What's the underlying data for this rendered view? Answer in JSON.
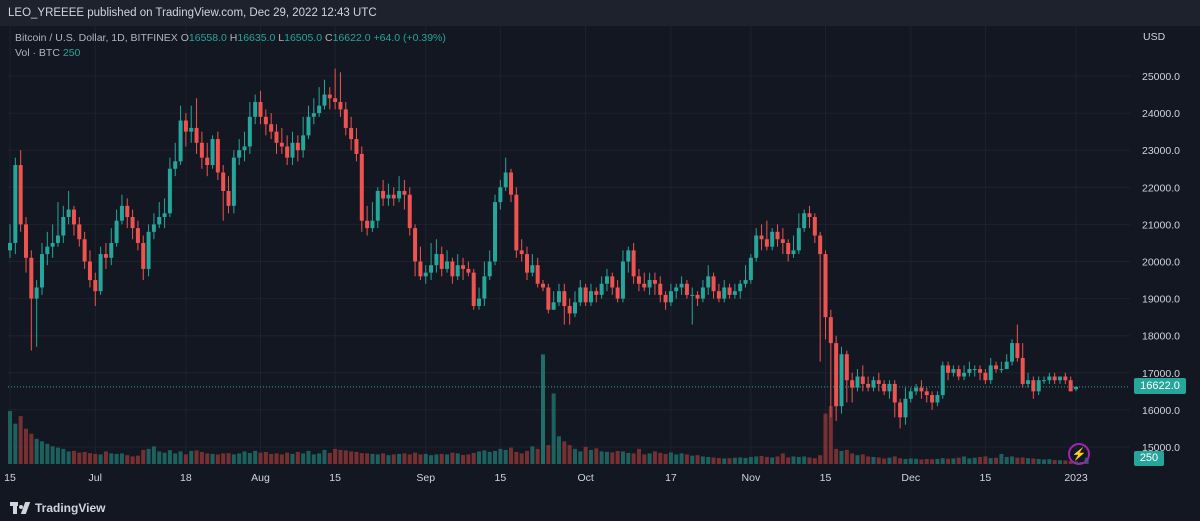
{
  "header": {
    "published": "LEO_YREEEE published on TradingView.com, Dec 29, 2022 12:43 UTC"
  },
  "legend": {
    "symbol": "Bitcoin / U.S. Dollar, 1D, BITFINEX",
    "open_label": "O",
    "open": "16558.0",
    "high_label": "H",
    "high": "16635.0",
    "low_label": "L",
    "low": "16505.0",
    "close_label": "C",
    "close": "16622.0",
    "change": "+64.0 (+0.39%)",
    "volume_label": "Vol · BTC",
    "volume": "250"
  },
  "axis": {
    "currency": "USD",
    "last_price": "16622.0",
    "last_volume": "250"
  },
  "footer": {
    "brand": "TradingView"
  },
  "colors": {
    "background": "#131722",
    "up": "#26a69a",
    "down": "#ef5350",
    "grid": "#1e222d",
    "text": "#d1d4dc"
  },
  "icons": {
    "alert": "lightning-icon"
  },
  "chart_data": {
    "type": "candlestick",
    "interval": "1D",
    "ylim": [
      14700,
      25400
    ],
    "y_ticks": [
      15000,
      16000,
      17000,
      18000,
      19000,
      20000,
      21000,
      22000,
      23000,
      24000,
      25000
    ],
    "y_tick_labels": [
      "15000.0",
      "16000.0",
      "17000.0",
      "18000.0",
      "19000.0",
      "20000.0",
      "21000.0",
      "22000.0",
      "23000.0",
      "24000.0",
      "25000.0"
    ],
    "x_ticks": [
      {
        "label": "15",
        "index": 0
      },
      {
        "label": "Jul",
        "index": 16
      },
      {
        "label": "18",
        "index": 33
      },
      {
        "label": "Aug",
        "index": 47
      },
      {
        "label": "15",
        "index": 61
      },
      {
        "label": "Sep",
        "index": 78
      },
      {
        "label": "15",
        "index": 92
      },
      {
        "label": "Oct",
        "index": 108
      },
      {
        "label": "17",
        "index": 124
      },
      {
        "label": "Nov",
        "index": 139
      },
      {
        "label": "15",
        "index": 153
      },
      {
        "label": "Dec",
        "index": 169
      },
      {
        "label": "15",
        "index": 183
      },
      {
        "label": "2023",
        "index": 200
      }
    ],
    "last_price": 16622.0,
    "points": [
      [
        20300,
        20500,
        21000,
        20100
      ],
      [
        20500,
        22600,
        22800,
        20200
      ],
      [
        22600,
        21000,
        23000,
        20800
      ],
      [
        21000,
        20100,
        21200,
        19700
      ],
      [
        20100,
        19000,
        20300,
        17600
      ],
      [
        19000,
        19300,
        19500,
        17700
      ],
      [
        19300,
        20200,
        20500,
        19100
      ],
      [
        20200,
        20400,
        20800,
        19900
      ],
      [
        20400,
        20500,
        21000,
        20100
      ],
      [
        20500,
        20700,
        21600,
        20400
      ],
      [
        20700,
        21200,
        21500,
        20500
      ],
      [
        21200,
        21400,
        21900,
        21000
      ],
      [
        21400,
        21000,
        21500,
        20700
      ],
      [
        21000,
        20600,
        21200,
        20400
      ],
      [
        20600,
        20000,
        20800,
        19800
      ],
      [
        20000,
        19500,
        20300,
        19300
      ],
      [
        19500,
        19200,
        19700,
        18800
      ],
      [
        19200,
        20200,
        20400,
        19100
      ],
      [
        20200,
        20100,
        20500,
        19800
      ],
      [
        20100,
        20500,
        20900,
        19900
      ],
      [
        20500,
        21100,
        21400,
        20400
      ],
      [
        21100,
        21500,
        21800,
        21000
      ],
      [
        21500,
        21200,
        21700,
        20900
      ],
      [
        21200,
        20900,
        21400,
        20600
      ],
      [
        20900,
        20500,
        21100,
        20300
      ],
      [
        20500,
        19800,
        20700,
        19500
      ],
      [
        19800,
        20800,
        21000,
        19600
      ],
      [
        20800,
        21000,
        21300,
        20600
      ],
      [
        21000,
        21200,
        21600,
        20900
      ],
      [
        21200,
        21300,
        21700,
        20900
      ],
      [
        21300,
        22500,
        22800,
        21200
      ],
      [
        22500,
        22700,
        23200,
        22300
      ],
      [
        22700,
        23800,
        24200,
        22600
      ],
      [
        23800,
        23500,
        24000,
        23100
      ],
      [
        23500,
        23600,
        24200,
        23200
      ],
      [
        23600,
        23200,
        24400,
        22900
      ],
      [
        23200,
        22800,
        23500,
        22500
      ],
      [
        22800,
        22600,
        23200,
        22300
      ],
      [
        22600,
        23300,
        23400,
        22500
      ],
      [
        23300,
        22400,
        23500,
        22200
      ],
      [
        22400,
        21900,
        22600,
        21100
      ],
      [
        21900,
        21500,
        22300,
        21300
      ],
      [
        21500,
        22800,
        23000,
        21300
      ],
      [
        22800,
        23000,
        23300,
        22600
      ],
      [
        23000,
        23100,
        23500,
        22700
      ],
      [
        23100,
        23900,
        24300,
        22900
      ],
      [
        23900,
        24300,
        24500,
        23700
      ],
      [
        24300,
        23900,
        24600,
        23700
      ],
      [
        23900,
        23700,
        24100,
        23400
      ],
      [
        23700,
        23500,
        24000,
        23300
      ],
      [
        23500,
        23200,
        23700,
        22900
      ],
      [
        23200,
        23100,
        23600,
        22900
      ],
      [
        23100,
        22800,
        23400,
        22600
      ],
      [
        22800,
        23200,
        23500,
        22600
      ],
      [
        23200,
        23000,
        23400,
        22700
      ],
      [
        23000,
        23400,
        23900,
        22800
      ],
      [
        23400,
        23900,
        24200,
        23300
      ],
      [
        23900,
        24000,
        24400,
        23700
      ],
      [
        24000,
        24200,
        24700,
        23900
      ],
      [
        24200,
        24500,
        24900,
        24100
      ],
      [
        24500,
        24400,
        24700,
        24100
      ],
      [
        24400,
        24300,
        25200,
        24100
      ],
      [
        24300,
        24100,
        25100,
        23900
      ],
      [
        24100,
        23600,
        24300,
        23400
      ],
      [
        23600,
        23300,
        23900,
        23000
      ],
      [
        23300,
        22900,
        23600,
        22700
      ],
      [
        22900,
        21100,
        23100,
        20800
      ],
      [
        21100,
        20900,
        21500,
        20700
      ],
      [
        20900,
        21100,
        21600,
        20800
      ],
      [
        21100,
        21900,
        22000,
        20900
      ],
      [
        21900,
        21700,
        22200,
        21500
      ],
      [
        21700,
        21800,
        22100,
        21500
      ],
      [
        21800,
        21700,
        22000,
        21500
      ],
      [
        21700,
        21900,
        22300,
        21600
      ],
      [
        21900,
        21800,
        22200,
        21400
      ],
      [
        21800,
        20900,
        22000,
        20700
      ],
      [
        20900,
        20000,
        21000,
        19600
      ],
      [
        20000,
        19600,
        20400,
        19500
      ],
      [
        19600,
        19700,
        19900,
        19400
      ],
      [
        19700,
        19900,
        20500,
        19500
      ],
      [
        19900,
        20200,
        20600,
        19700
      ],
      [
        20200,
        19800,
        20400,
        19600
      ],
      [
        19800,
        20000,
        20300,
        19700
      ],
      [
        20000,
        19600,
        20100,
        19400
      ],
      [
        19600,
        19900,
        20200,
        19500
      ],
      [
        19900,
        19800,
        20100,
        19500
      ],
      [
        19800,
        19700,
        20000,
        19600
      ],
      [
        19700,
        18800,
        19800,
        18700
      ],
      [
        18800,
        19000,
        19300,
        18700
      ],
      [
        19000,
        19600,
        20000,
        18800
      ],
      [
        19600,
        20000,
        20300,
        19500
      ],
      [
        20000,
        21600,
        21800,
        19900
      ],
      [
        21600,
        22000,
        22200,
        21400
      ],
      [
        22000,
        22400,
        22800,
        21900
      ],
      [
        22400,
        21800,
        22500,
        21600
      ],
      [
        21800,
        20300,
        22000,
        20100
      ],
      [
        20300,
        20200,
        20600,
        20000
      ],
      [
        20200,
        19700,
        20400,
        19500
      ],
      [
        19700,
        19900,
        20200,
        19600
      ],
      [
        19900,
        19400,
        20100,
        19300
      ],
      [
        19400,
        19300,
        19500,
        19200
      ],
      [
        19300,
        18700,
        19400,
        18600
      ],
      [
        18700,
        18900,
        19200,
        18700
      ],
      [
        18900,
        19200,
        19400,
        18800
      ],
      [
        19200,
        18800,
        19400,
        18300
      ],
      [
        18800,
        18600,
        19000,
        18300
      ],
      [
        18600,
        18900,
        19200,
        18500
      ],
      [
        18900,
        19300,
        19500,
        18800
      ],
      [
        19300,
        18900,
        19400,
        18800
      ],
      [
        18900,
        19200,
        19400,
        18800
      ],
      [
        19200,
        19100,
        19300,
        18900
      ],
      [
        19100,
        19400,
        19600,
        19000
      ],
      [
        19400,
        19600,
        19800,
        19200
      ],
      [
        19600,
        19300,
        19700,
        19100
      ],
      [
        19300,
        19000,
        19500,
        18900
      ],
      [
        19000,
        20000,
        20300,
        18900
      ],
      [
        20000,
        20300,
        20400,
        19700
      ],
      [
        20300,
        19600,
        20500,
        19400
      ],
      [
        19600,
        19400,
        19800,
        19200
      ],
      [
        19400,
        19300,
        19700,
        19200
      ],
      [
        19300,
        19500,
        19700,
        19100
      ],
      [
        19500,
        19400,
        19700,
        19100
      ],
      [
        19400,
        19100,
        19600,
        18900
      ],
      [
        19100,
        18900,
        19200,
        18700
      ],
      [
        18900,
        19200,
        19400,
        18800
      ],
      [
        19200,
        19300,
        19400,
        19000
      ],
      [
        19300,
        19400,
        19600,
        19100
      ],
      [
        19400,
        19100,
        19500,
        19000
      ],
      [
        19100,
        19100,
        19300,
        18300
      ],
      [
        19100,
        19000,
        19200,
        18800
      ],
      [
        19000,
        19300,
        19500,
        18900
      ],
      [
        19300,
        19600,
        19900,
        19100
      ],
      [
        19600,
        19200,
        19700,
        19000
      ],
      [
        19200,
        19000,
        19400,
        18900
      ],
      [
        19000,
        19300,
        19500,
        18900
      ],
      [
        19300,
        19100,
        19400,
        19000
      ],
      [
        19100,
        19200,
        19400,
        19000
      ],
      [
        19200,
        19400,
        19500,
        19000
      ],
      [
        19400,
        19500,
        19900,
        19300
      ],
      [
        19500,
        20100,
        20200,
        19400
      ],
      [
        20100,
        20700,
        20900,
        20000
      ],
      [
        20700,
        20600,
        21000,
        20300
      ],
      [
        20600,
        20400,
        21100,
        20300
      ],
      [
        20400,
        20800,
        20900,
        20300
      ],
      [
        20800,
        20600,
        21000,
        20400
      ],
      [
        20600,
        20500,
        20900,
        20200
      ],
      [
        20500,
        20200,
        20600,
        20000
      ],
      [
        20200,
        20300,
        20700,
        20100
      ],
      [
        20300,
        20900,
        21300,
        20200
      ],
      [
        20900,
        21300,
        21400,
        20800
      ],
      [
        21300,
        21200,
        21500,
        20900
      ],
      [
        21200,
        20700,
        21300,
        20500
      ],
      [
        20700,
        20200,
        20800,
        17300
      ],
      [
        20200,
        18500,
        20300,
        17900
      ],
      [
        18500,
        17800,
        18700,
        15800
      ],
      [
        17800,
        16100,
        18000,
        15700
      ],
      [
        16100,
        17500,
        17700,
        15900
      ],
      [
        17500,
        16800,
        17600,
        16200
      ],
      [
        16800,
        16600,
        17000,
        16200
      ],
      [
        16600,
        16900,
        17100,
        16500
      ],
      [
        16900,
        16700,
        17200,
        16500
      ],
      [
        16700,
        16600,
        16900,
        16500
      ],
      [
        16600,
        16800,
        16900,
        16500
      ],
      [
        16800,
        16700,
        17000,
        16500
      ],
      [
        16700,
        16500,
        16800,
        16400
      ],
      [
        16500,
        16700,
        16800,
        16300
      ],
      [
        16700,
        16200,
        16800,
        15800
      ],
      [
        16200,
        15800,
        16300,
        15500
      ],
      [
        15800,
        16300,
        16600,
        15600
      ],
      [
        16300,
        16500,
        16600,
        16200
      ],
      [
        16500,
        16600,
        16700,
        16400
      ],
      [
        16600,
        16500,
        16800,
        16300
      ],
      [
        16500,
        16400,
        16600,
        16200
      ],
      [
        16400,
        16200,
        16500,
        16000
      ],
      [
        16200,
        16400,
        16500,
        16100
      ],
      [
        16400,
        17200,
        17300,
        16300
      ],
      [
        17200,
        17000,
        17300,
        16800
      ],
      [
        17000,
        17100,
        17200,
        16900
      ],
      [
        17100,
        16900,
        17200,
        16800
      ],
      [
        16900,
        17000,
        17200,
        16800
      ],
      [
        17000,
        17100,
        17300,
        16900
      ],
      [
        17100,
        17100,
        17200,
        16900
      ],
      [
        17100,
        17000,
        17200,
        16800
      ],
      [
        17000,
        16800,
        17100,
        16700
      ],
      [
        16800,
        17200,
        17400,
        16700
      ],
      [
        17200,
        17100,
        17300,
        17000
      ],
      [
        17100,
        17100,
        17300,
        17000
      ],
      [
        17100,
        17300,
        17500,
        17100
      ],
      [
        17300,
        17800,
        17900,
        17200
      ],
      [
        17800,
        17400,
        18300,
        17300
      ],
      [
        17400,
        16700,
        17800,
        16600
      ],
      [
        16700,
        16800,
        17000,
        16600
      ],
      [
        16800,
        16500,
        16900,
        16300
      ],
      [
        16500,
        16800,
        16900,
        16400
      ],
      [
        16800,
        16800,
        16900,
        16700
      ],
      [
        16800,
        16900,
        17000,
        16700
      ],
      [
        16900,
        16800,
        17000,
        16700
      ],
      [
        16800,
        16900,
        16900,
        16700
      ],
      [
        16900,
        16800,
        17000,
        16700
      ],
      [
        16800,
        16500,
        16900,
        16500
      ],
      [
        16558,
        16622,
        16635,
        16505
      ]
    ],
    "volume": [
      2100,
      1600,
      1900,
      1400,
      1200,
      1000,
      900,
      800,
      700,
      650,
      600,
      500,
      520,
      450,
      480,
      430,
      400,
      380,
      500,
      420,
      400,
      420,
      350,
      300,
      330,
      560,
      600,
      700,
      500,
      450,
      550,
      420,
      500,
      380,
      520,
      540,
      480,
      420,
      400,
      380,
      420,
      430,
      380,
      420,
      500,
      440,
      520,
      450,
      480,
      400,
      420,
      380,
      450,
      400,
      480,
      420,
      520,
      380,
      420,
      560,
      440,
      600,
      560,
      540,
      500,
      480,
      430,
      420,
      400,
      380,
      420,
      350,
      380,
      400,
      420,
      380,
      450,
      380,
      400,
      350,
      380,
      400,
      380,
      450,
      420,
      360,
      380,
      440,
      500,
      540,
      480,
      520,
      600,
      560,
      650,
      480,
      420,
      520,
      700,
      600,
      1400,
      750,
      2800,
      1100,
      900,
      750,
      600,
      500,
      680,
      560,
      620,
      500,
      480,
      460,
      520,
      500,
      440,
      420,
      600,
      380,
      420,
      500,
      440,
      400,
      460,
      380,
      420,
      380,
      330,
      350,
      300,
      280,
      260,
      240,
      220,
      230,
      250,
      260,
      240,
      280,
      300,
      320,
      280,
      260,
      300,
      420,
      260,
      300,
      280,
      300,
      260,
      230,
      350,
      2000,
      2300,
      600,
      520,
      560,
      420,
      350,
      380,
      300,
      280,
      260,
      220,
      250,
      300,
      230,
      200,
      220,
      210,
      180,
      200,
      190,
      200,
      230,
      210,
      220,
      250,
      300,
      220,
      250,
      280,
      300,
      230,
      250,
      400,
      280,
      300,
      250,
      260,
      230,
      220,
      200,
      180,
      190,
      160,
      150,
      140,
      120,
      100,
      80,
      250
    ],
    "volume_special": {
      "index": 100,
      "value": 7500
    }
  }
}
